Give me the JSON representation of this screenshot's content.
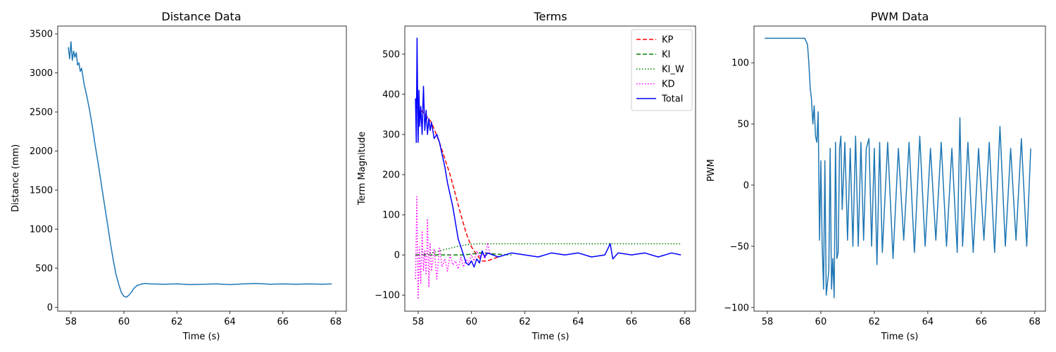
{
  "chart_data": [
    {
      "type": "line",
      "title": "Distance Data",
      "xlabel": "Time (s)",
      "ylabel": "Distance (mm)",
      "xlim": [
        57.5,
        68.4
      ],
      "ylim": [
        -50,
        3600
      ],
      "xticks": [
        58,
        60,
        62,
        64,
        66,
        68
      ],
      "yticks": [
        0,
        500,
        1000,
        1500,
        2000,
        2500,
        3000,
        3500
      ],
      "grid": false,
      "series": [
        {
          "color": "#1f77b4",
          "x": [
            57.9,
            57.95,
            58.0,
            58.05,
            58.1,
            58.15,
            58.2,
            58.25,
            58.3,
            58.35,
            58.4,
            58.5,
            58.6,
            58.7,
            58.8,
            58.9,
            59.0,
            59.1,
            59.2,
            59.3,
            59.4,
            59.5,
            59.6,
            59.7,
            59.8,
            59.9,
            60.0,
            60.1,
            60.2,
            60.3,
            60.35,
            60.4,
            60.5,
            60.6,
            60.7,
            60.8,
            61.0,
            61.5,
            62.0,
            62.5,
            63.0,
            63.5,
            64.0,
            64.5,
            65.0,
            65.5,
            66.0,
            66.5,
            67.0,
            67.5,
            67.85
          ],
          "y": [
            3330,
            3180,
            3400,
            3160,
            3280,
            3200,
            3260,
            3100,
            3130,
            3020,
            3060,
            2850,
            2700,
            2530,
            2330,
            2100,
            1900,
            1680,
            1460,
            1240,
            1020,
            800,
            600,
            420,
            300,
            190,
            140,
            130,
            160,
            200,
            230,
            250,
            280,
            290,
            300,
            305,
            300,
            295,
            300,
            290,
            295,
            300,
            290,
            300,
            305,
            295,
            300,
            295,
            300,
            295,
            300
          ]
        }
      ]
    },
    {
      "type": "line",
      "title": "Terms",
      "xlabel": "Time (s)",
      "ylabel": "Term Magnitude",
      "xlim": [
        57.5,
        68.4
      ],
      "ylim": [
        -140,
        570
      ],
      "xticks": [
        58,
        60,
        62,
        64,
        66,
        68
      ],
      "yticks": [
        -100,
        0,
        100,
        200,
        300,
        400,
        500
      ],
      "grid": false,
      "legend_position": "top-right",
      "series": [
        {
          "name": "KP",
          "color": "#ff0000",
          "style": "dashed",
          "x": [
            57.9,
            58.2,
            58.5,
            58.8,
            59.0,
            59.2,
            59.4,
            59.6,
            59.8,
            60.0,
            60.2,
            60.4,
            60.6,
            60.8,
            61.0
          ],
          "y": [
            370,
            355,
            330,
            280,
            240,
            200,
            150,
            100,
            55,
            20,
            0,
            -15,
            -15,
            -10,
            -5
          ]
        },
        {
          "name": "KI",
          "color": "#008000",
          "style": "dashed",
          "x": [
            57.9,
            58.2,
            58.5,
            58.8,
            59.1,
            59.4,
            59.7,
            60.0,
            60.3,
            60.6,
            60.9,
            61.2,
            61.5
          ],
          "y": [
            0,
            0,
            0,
            0,
            0,
            0,
            0,
            2,
            5,
            4,
            2,
            1,
            0
          ]
        },
        {
          "name": "KI_W",
          "color": "#008000",
          "style": "dotted",
          "x": [
            57.9,
            58.2,
            58.5,
            58.8,
            59.1,
            59.4,
            59.7,
            60.0,
            60.3,
            60.6,
            61.0,
            62.0,
            63.0,
            64.0,
            65.0,
            66.0,
            67.0,
            67.85
          ],
          "y": [
            0,
            2,
            5,
            10,
            15,
            20,
            24,
            27,
            28,
            28,
            28,
            28,
            28,
            28,
            28,
            28,
            28,
            28
          ]
        },
        {
          "name": "KD",
          "color": "#ff00ff",
          "style": "dotted",
          "x": [
            57.9,
            57.95,
            58.0,
            58.05,
            58.1,
            58.15,
            58.2,
            58.25,
            58.3,
            58.35,
            58.4,
            58.45,
            58.5,
            58.6,
            58.7,
            58.8,
            58.9,
            59.0,
            59.1,
            59.2,
            59.3,
            59.4,
            59.5,
            59.6,
            59.7,
            59.8,
            59.9,
            60.0,
            60.1,
            60.2,
            60.3,
            60.4,
            60.5,
            60.6,
            60.7
          ],
          "y": [
            -60,
            145,
            -110,
            20,
            -70,
            60,
            -40,
            10,
            -50,
            90,
            -80,
            30,
            -40,
            15,
            -60,
            20,
            -30,
            -10,
            -40,
            0,
            -25,
            -15,
            -35,
            -5,
            -30,
            -10,
            -20,
            0,
            -15,
            10,
            -5,
            5,
            -10,
            30,
            0
          ]
        },
        {
          "name": "Total",
          "color": "#0000ff",
          "style": "solid",
          "x": [
            57.9,
            57.93,
            57.96,
            58.0,
            58.03,
            58.06,
            58.1,
            58.15,
            58.2,
            58.25,
            58.3,
            58.35,
            58.4,
            58.45,
            58.5,
            58.6,
            58.7,
            58.8,
            58.9,
            59.0,
            59.1,
            59.2,
            59.3,
            59.4,
            59.5,
            59.6,
            59.7,
            59.8,
            59.9,
            60.0,
            60.1,
            60.2,
            60.3,
            60.4,
            60.5,
            60.6,
            60.8,
            61.0,
            61.5,
            62.0,
            62.5,
            63.0,
            63.5,
            64.0,
            64.5,
            65.0,
            65.2,
            65.3,
            65.5,
            66.0,
            66.5,
            67.0,
            67.5,
            67.85
          ],
          "y": [
            390,
            280,
            540,
            280,
            410,
            320,
            370,
            300,
            420,
            310,
            360,
            300,
            340,
            310,
            330,
            290,
            300,
            280,
            250,
            220,
            180,
            150,
            120,
            80,
            40,
            20,
            0,
            -20,
            -25,
            -15,
            -30,
            -10,
            -20,
            10,
            -5,
            5,
            0,
            -5,
            5,
            0,
            -5,
            5,
            0,
            5,
            -5,
            0,
            28,
            -10,
            5,
            0,
            5,
            -5,
            5,
            0
          ]
        }
      ]
    },
    {
      "type": "line",
      "title": "PWM Data",
      "xlabel": "Time (s)",
      "ylabel": "PWM",
      "xlim": [
        57.5,
        68.4
      ],
      "ylim": [
        -103,
        130
      ],
      "xticks": [
        58,
        60,
        62,
        64,
        66,
        68
      ],
      "yticks": [
        -100,
        -50,
        0,
        50,
        100
      ],
      "grid": false,
      "series": [
        {
          "color": "#1f77b4",
          "x": [
            57.9,
            58.5,
            59.0,
            59.4,
            59.5,
            59.55,
            59.6,
            59.65,
            59.7,
            59.75,
            59.8,
            59.85,
            59.9,
            59.95,
            60.0,
            60.05,
            60.1,
            60.15,
            60.2,
            60.25,
            60.3,
            60.35,
            60.4,
            60.45,
            60.5,
            60.55,
            60.6,
            60.65,
            60.7,
            60.75,
            60.8,
            60.9,
            61.0,
            61.1,
            61.2,
            61.3,
            61.4,
            61.5,
            61.6,
            61.7,
            61.8,
            61.9,
            62.0,
            62.1,
            62.2,
            62.3,
            62.5,
            62.7,
            62.9,
            63.1,
            63.3,
            63.5,
            63.7,
            63.9,
            64.1,
            64.3,
            64.5,
            64.7,
            64.9,
            65.1,
            65.2,
            65.3,
            65.5,
            65.7,
            65.9,
            66.1,
            66.3,
            66.5,
            66.7,
            66.9,
            67.1,
            67.3,
            67.5,
            67.7,
            67.85
          ],
          "y": [
            120,
            120,
            120,
            120,
            115,
            100,
            80,
            70,
            50,
            65,
            40,
            35,
            60,
            -45,
            20,
            -50,
            -85,
            20,
            -90,
            -80,
            -70,
            30,
            -85,
            -60,
            -92,
            35,
            -60,
            -55,
            30,
            40,
            -20,
            35,
            -45,
            30,
            -50,
            40,
            -50,
            35,
            -45,
            30,
            38,
            -50,
            30,
            -65,
            35,
            -55,
            35,
            -60,
            30,
            -45,
            35,
            -55,
            40,
            -50,
            30,
            -45,
            35,
            -50,
            30,
            -55,
            55,
            -50,
            35,
            -55,
            30,
            -45,
            35,
            -55,
            48,
            -50,
            30,
            -45,
            38,
            -50,
            30
          ]
        }
      ]
    }
  ]
}
